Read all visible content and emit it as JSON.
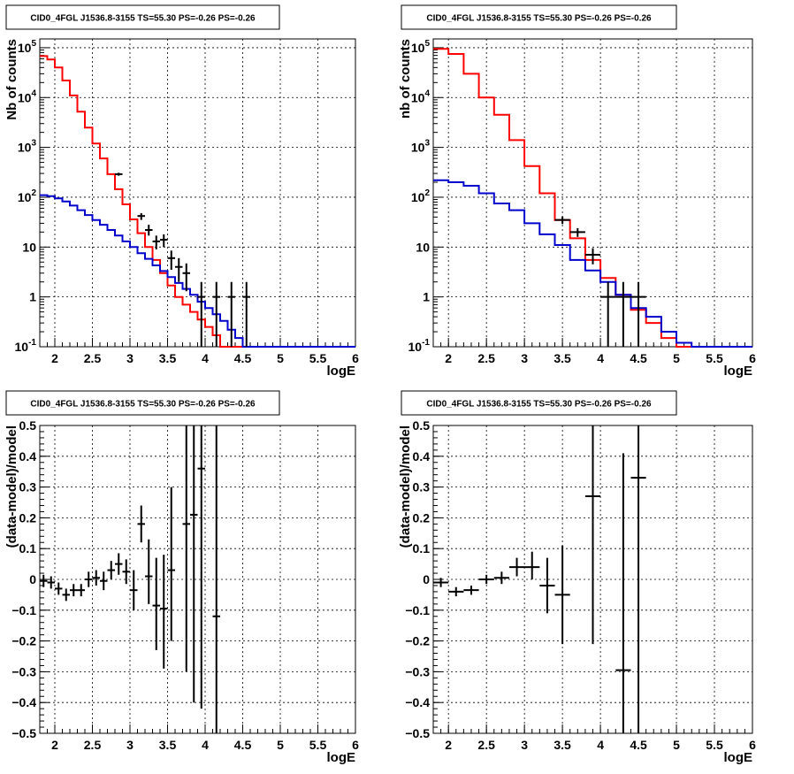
{
  "chart_data": [
    {
      "type": "histogram",
      "panel": "top-left",
      "title": "CID0_4FGL J1536.8-3155 TS=55.30 PS=-0.26 PS=-0.26",
      "xlabel": "logE",
      "ylabel": "Nb of counts",
      "xlim": [
        1.8,
        6.0
      ],
      "ylim": [
        0.1,
        150000
      ],
      "log_y": true,
      "grid": true,
      "x_ticks": [
        "2",
        "2.5",
        "3",
        "3.5",
        "4",
        "4.5",
        "5",
        "5.5",
        "6"
      ],
      "y_ticks": [
        "10^{-1}",
        "1",
        "10",
        "10^{2}",
        "10^{3}",
        "10^{4}",
        "10^{5}"
      ],
      "bin_edges": [
        1.8,
        1.9,
        2.0,
        2.1,
        2.2,
        2.3,
        2.4,
        2.5,
        2.6,
        2.7,
        2.8,
        2.9,
        3.0,
        3.1,
        3.2,
        3.3,
        3.4,
        3.5,
        3.6,
        3.7,
        3.8,
        3.9,
        4.0,
        4.1,
        4.2,
        4.3,
        4.4,
        4.5,
        4.6,
        4.7,
        4.8,
        4.9,
        5.0,
        5.1,
        5.2,
        5.3,
        5.4,
        5.5,
        5.6,
        5.7,
        5.8,
        5.9,
        6.0
      ],
      "series": [
        {
          "color": "#ff0000",
          "values": [
            68000,
            58000,
            40000,
            22000,
            11000,
            5200,
            2500,
            1200,
            600,
            290,
            145,
            72,
            36,
            19,
            10,
            5.5,
            3.0,
            1.7,
            1.0,
            0.7,
            0.5,
            0.35,
            0.25,
            0.17,
            0.1,
            0.1,
            0.1,
            0.1,
            0.1,
            0.1,
            0.1,
            0.1,
            0.1,
            0.1,
            0.1,
            0.1,
            0.1,
            0.1,
            0.1,
            0.1,
            0.1,
            0.1
          ]
        },
        {
          "color": "#0000cc",
          "values": [
            110,
            105,
            95,
            82,
            68,
            55,
            44,
            35,
            28,
            22,
            17,
            13,
            10,
            7.5,
            5.8,
            4.3,
            3.3,
            2.5,
            1.9,
            1.45,
            1.1,
            0.8,
            0.6,
            0.45,
            0.33,
            0.22,
            0.15,
            0.1,
            0.1,
            0.1,
            0.1,
            0.1,
            0.1,
            0.1,
            0.1,
            0.1,
            0.1,
            0.1,
            0.1,
            0.1,
            0.1,
            0.1
          ]
        }
      ],
      "data_points": [
        {
          "x": 2.85,
          "xerr": 0.05,
          "y": 290,
          "ylo": 270,
          "yhi": 310
        },
        {
          "x": 3.15,
          "xerr": 0.05,
          "y": 42,
          "ylo": 35,
          "yhi": 48
        },
        {
          "x": 3.25,
          "xerr": 0.05,
          "y": 22,
          "ylo": 17,
          "yhi": 28
        },
        {
          "x": 3.35,
          "xerr": 0.05,
          "y": 13,
          "ylo": 9,
          "yhi": 17
        },
        {
          "x": 3.45,
          "xerr": 0.05,
          "y": 14,
          "ylo": 10,
          "yhi": 18
        },
        {
          "x": 3.55,
          "xerr": 0.05,
          "y": 6,
          "ylo": 3.5,
          "yhi": 8.5
        },
        {
          "x": 3.65,
          "xerr": 0.05,
          "y": 4,
          "ylo": 2,
          "yhi": 6
        },
        {
          "x": 3.75,
          "xerr": 0.05,
          "y": 3,
          "ylo": 1.3,
          "yhi": 4.7
        },
        {
          "x": 3.95,
          "xerr": 0.05,
          "y": 1,
          "ylo": 0.1,
          "yhi": 2
        },
        {
          "x": 4.15,
          "xerr": 0.05,
          "y": 1,
          "ylo": 0.1,
          "yhi": 2
        },
        {
          "x": 4.35,
          "xerr": 0.05,
          "y": 1,
          "ylo": 0.1,
          "yhi": 2
        },
        {
          "x": 4.55,
          "xerr": 0.05,
          "y": 1,
          "ylo": 0.1,
          "yhi": 2
        }
      ]
    },
    {
      "type": "histogram",
      "panel": "top-right",
      "title": "CID0_4FGL J1536.8-3155 TS=55.30 PS=-0.26 PS=-0.26",
      "xlabel": "logE",
      "ylabel": "nb of counts",
      "xlim": [
        1.8,
        6.0
      ],
      "ylim": [
        0.1,
        150000
      ],
      "log_y": true,
      "grid": true,
      "x_ticks": [
        "2",
        "2.5",
        "3",
        "3.5",
        "4",
        "4.5",
        "5",
        "5.5",
        "6"
      ],
      "y_ticks": [
        "10^{-1}",
        "1",
        "10",
        "10^{2}",
        "10^{3}",
        "10^{4}",
        "10^{5}"
      ],
      "bin_edges": [
        1.8,
        2.0,
        2.2,
        2.4,
        2.6,
        2.8,
        3.0,
        3.2,
        3.4,
        3.6,
        3.8,
        4.0,
        4.2,
        4.4,
        4.6,
        4.8,
        5.0,
        5.2,
        5.4,
        5.6,
        5.8,
        6.0
      ],
      "series": [
        {
          "color": "#ff0000",
          "values": [
            95000,
            75000,
            30000,
            10000,
            4500,
            1400,
            420,
            120,
            35,
            15,
            5.5,
            2.4,
            1.1,
            0.55,
            0.3,
            0.15,
            0.1,
            0.1,
            0.1,
            0.1,
            0.1
          ]
        },
        {
          "color": "#0000cc",
          "values": [
            220,
            200,
            170,
            120,
            75,
            55,
            30,
            18,
            11,
            5.5,
            3.4,
            2.0,
            1.1,
            0.6,
            0.4,
            0.2,
            0.12,
            0.1,
            0.1,
            0.1,
            0.1
          ]
        }
      ],
      "data_points": [
        {
          "x": 3.5,
          "xerr": 0.1,
          "y": 35,
          "ylo": 29,
          "yhi": 41
        },
        {
          "x": 3.7,
          "xerr": 0.1,
          "y": 20,
          "ylo": 16,
          "yhi": 24
        },
        {
          "x": 3.9,
          "xerr": 0.1,
          "y": 7,
          "ylo": 4.5,
          "yhi": 9.5
        },
        {
          "x": 4.1,
          "xerr": 0.1,
          "y": 1,
          "ylo": 0.1,
          "yhi": 2
        },
        {
          "x": 4.3,
          "xerr": 0.1,
          "y": 1,
          "ylo": 0.1,
          "yhi": 2
        },
        {
          "x": 4.5,
          "xerr": 0.1,
          "y": 1,
          "ylo": 0.1,
          "yhi": 2
        }
      ]
    },
    {
      "type": "scatter",
      "panel": "bottom-left",
      "title": "CID0_4FGL J1536.8-3155 TS=55.30 PS=-0.26 PS=-0.26",
      "xlabel": "logE",
      "ylabel": "(data-model)/model",
      "xlim": [
        1.8,
        6.0
      ],
      "ylim": [
        -0.5,
        0.5
      ],
      "log_y": false,
      "grid": true,
      "x_ticks": [
        "2",
        "2.5",
        "3",
        "3.5",
        "4",
        "4.5",
        "5",
        "5.5",
        "6"
      ],
      "y_ticks": [
        "-0.5",
        "-0.4",
        "-0.3",
        "-0.2",
        "-0.1",
        "0",
        "0.1",
        "0.2",
        "0.3",
        "0.4",
        "0.5"
      ],
      "data_points": [
        {
          "x": 1.85,
          "xerr": 0.05,
          "y": -0.005,
          "ylo": -0.025,
          "yhi": 0.015
        },
        {
          "x": 1.95,
          "xerr": 0.05,
          "y": -0.01,
          "ylo": -0.03,
          "yhi": 0.01
        },
        {
          "x": 2.05,
          "xerr": 0.05,
          "y": -0.03,
          "ylo": -0.05,
          "yhi": -0.01
        },
        {
          "x": 2.15,
          "xerr": 0.05,
          "y": -0.05,
          "ylo": -0.07,
          "yhi": -0.03
        },
        {
          "x": 2.25,
          "xerr": 0.05,
          "y": -0.035,
          "ylo": -0.055,
          "yhi": -0.015
        },
        {
          "x": 2.35,
          "xerr": 0.05,
          "y": -0.035,
          "ylo": -0.055,
          "yhi": -0.015
        },
        {
          "x": 2.45,
          "xerr": 0.05,
          "y": 0.0,
          "ylo": -0.025,
          "yhi": 0.025
        },
        {
          "x": 2.55,
          "xerr": 0.05,
          "y": 0.005,
          "ylo": -0.02,
          "yhi": 0.03
        },
        {
          "x": 2.65,
          "xerr": 0.05,
          "y": -0.005,
          "ylo": -0.035,
          "yhi": 0.025
        },
        {
          "x": 2.75,
          "xerr": 0.05,
          "y": 0.03,
          "ylo": 0.0,
          "yhi": 0.06
        },
        {
          "x": 2.85,
          "xerr": 0.05,
          "y": 0.05,
          "ylo": 0.015,
          "yhi": 0.085
        },
        {
          "x": 2.95,
          "xerr": 0.05,
          "y": 0.025,
          "ylo": -0.015,
          "yhi": 0.065
        },
        {
          "x": 3.05,
          "xerr": 0.05,
          "y": -0.035,
          "ylo": -0.1,
          "yhi": 0.03
        },
        {
          "x": 3.15,
          "xerr": 0.05,
          "y": 0.18,
          "ylo": 0.12,
          "yhi": 0.24
        },
        {
          "x": 3.25,
          "xerr": 0.05,
          "y": 0.01,
          "ylo": -0.08,
          "yhi": 0.13
        },
        {
          "x": 3.35,
          "xerr": 0.05,
          "y": -0.085,
          "ylo": -0.23,
          "yhi": 0.07
        },
        {
          "x": 3.45,
          "xerr": 0.05,
          "y": -0.095,
          "ylo": -0.29,
          "yhi": 0.08
        },
        {
          "x": 3.55,
          "xerr": 0.05,
          "y": 0.03,
          "ylo": -0.2,
          "yhi": 0.3
        },
        {
          "x": 3.75,
          "xerr": 0.05,
          "y": 0.18,
          "ylo": -0.3,
          "yhi": 0.5
        },
        {
          "x": 3.85,
          "xerr": 0.05,
          "y": 0.21,
          "ylo": -0.4,
          "yhi": 0.5
        },
        {
          "x": 3.95,
          "xerr": 0.05,
          "y": 0.36,
          "ylo": -0.42,
          "yhi": 0.5
        },
        {
          "x": 4.15,
          "xerr": 0.05,
          "y": -0.12,
          "ylo": -0.5,
          "yhi": 0.5
        }
      ]
    },
    {
      "type": "scatter",
      "panel": "bottom-right",
      "title": "CID0_4FGL J1536.8-3155 TS=55.30 PS=-0.26 PS=-0.26",
      "xlabel": "logE",
      "ylabel": "(data-model)/model",
      "xlim": [
        1.8,
        6.0
      ],
      "ylim": [
        -0.5,
        0.5
      ],
      "log_y": false,
      "grid": true,
      "x_ticks": [
        "2",
        "2.5",
        "3",
        "3.5",
        "4",
        "4.5",
        "5",
        "5.5",
        "6"
      ],
      "y_ticks": [
        "-0.5",
        "-0.4",
        "-0.3",
        "-0.2",
        "-0.1",
        "0",
        "0.1",
        "0.2",
        "0.3",
        "0.4",
        "0.5"
      ],
      "data_points": [
        {
          "x": 1.9,
          "xerr": 0.1,
          "y": -0.01,
          "ylo": -0.025,
          "yhi": 0.005
        },
        {
          "x": 2.1,
          "xerr": 0.1,
          "y": -0.04,
          "ylo": -0.055,
          "yhi": -0.025
        },
        {
          "x": 2.3,
          "xerr": 0.1,
          "y": -0.035,
          "ylo": -0.05,
          "yhi": -0.02
        },
        {
          "x": 2.5,
          "xerr": 0.1,
          "y": 0.0,
          "ylo": -0.015,
          "yhi": 0.015
        },
        {
          "x": 2.7,
          "xerr": 0.1,
          "y": 0.005,
          "ylo": -0.015,
          "yhi": 0.025
        },
        {
          "x": 2.9,
          "xerr": 0.1,
          "y": 0.04,
          "ylo": 0.01,
          "yhi": 0.07
        },
        {
          "x": 3.1,
          "xerr": 0.1,
          "y": 0.04,
          "ylo": 0.0,
          "yhi": 0.09
        },
        {
          "x": 3.3,
          "xerr": 0.1,
          "y": -0.02,
          "ylo": -0.11,
          "yhi": 0.07
        },
        {
          "x": 3.5,
          "xerr": 0.1,
          "y": -0.05,
          "ylo": -0.21,
          "yhi": 0.11
        },
        {
          "x": 3.9,
          "xerr": 0.1,
          "y": 0.27,
          "ylo": -0.21,
          "yhi": 0.5
        },
        {
          "x": 4.3,
          "xerr": 0.1,
          "y": -0.295,
          "ylo": -0.5,
          "yhi": 0.41
        },
        {
          "x": 4.5,
          "xerr": 0.1,
          "y": 0.33,
          "ylo": -0.5,
          "yhi": 0.5
        }
      ]
    }
  ]
}
